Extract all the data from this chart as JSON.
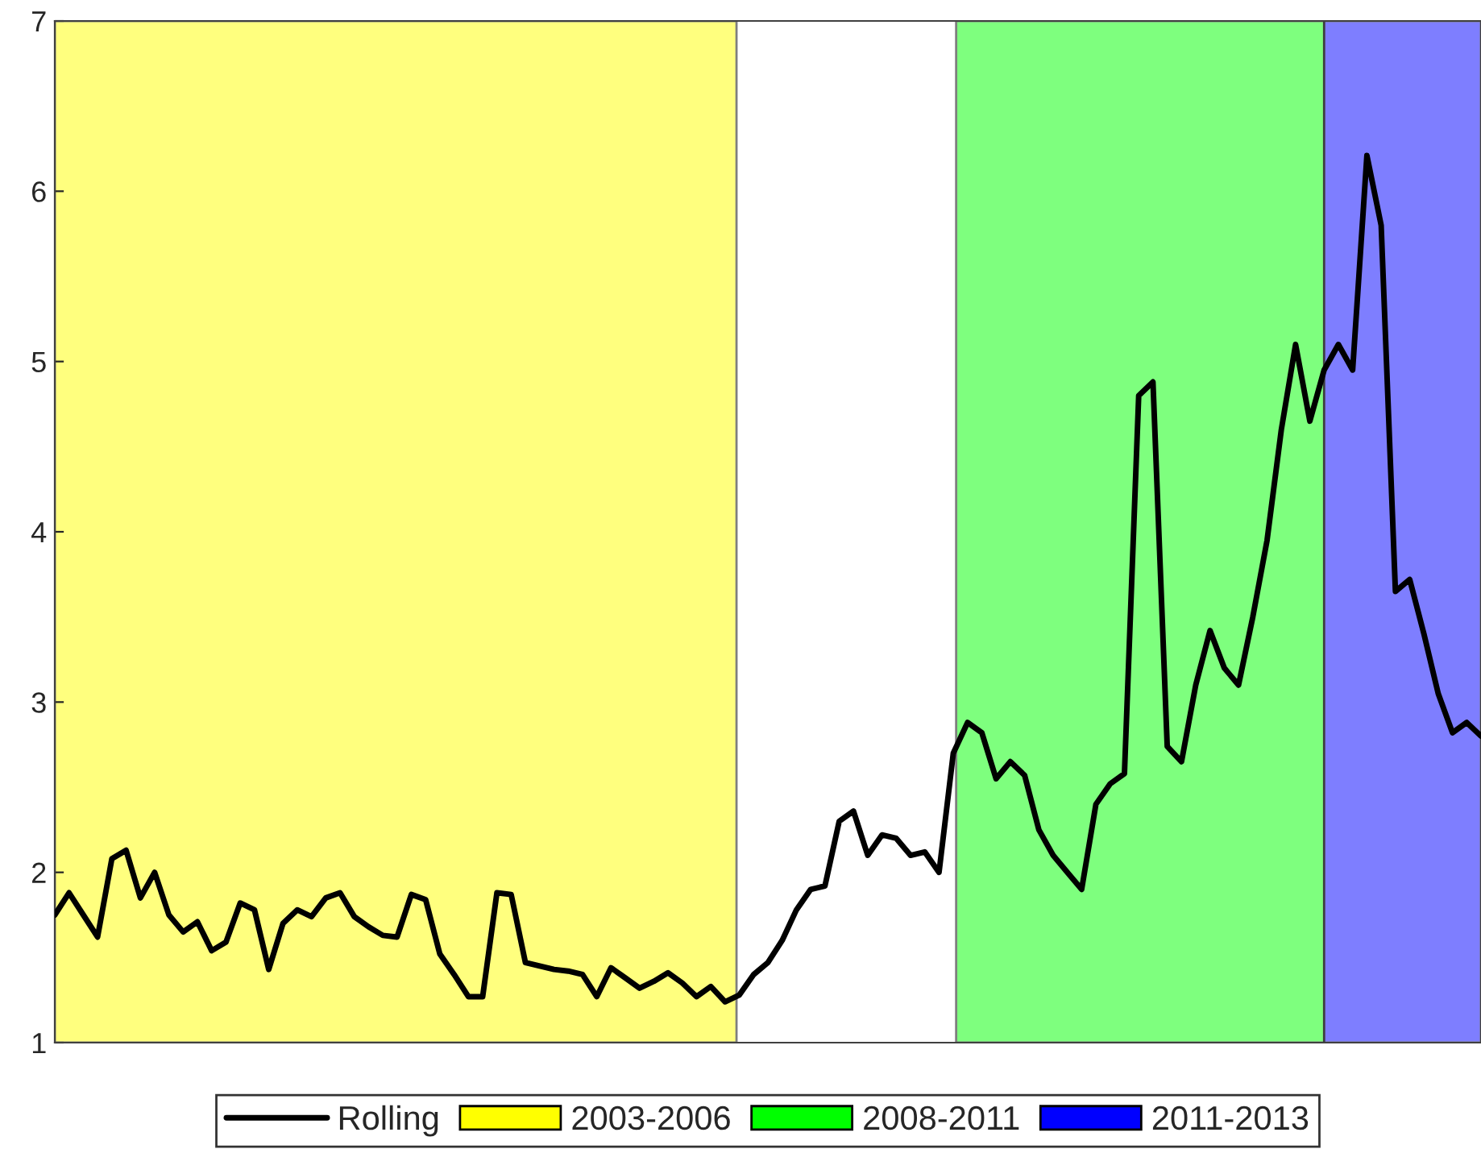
{
  "chart_data": {
    "type": "line",
    "categories": [
      null,
      null,
      null,
      null,
      null,
      null,
      null,
      null,
      null,
      null,
      null,
      null,
      null,
      null,
      null,
      null,
      null,
      null,
      null,
      null,
      null,
      null,
      null,
      null,
      null,
      null,
      null,
      null,
      null,
      null,
      null,
      null,
      null,
      null,
      null,
      null,
      null,
      null,
      null,
      null,
      null,
      null,
      null,
      null,
      null,
      null,
      null,
      null,
      null,
      null,
      null,
      null,
      null,
      null,
      null,
      null,
      null,
      null,
      null,
      null,
      null,
      null,
      null,
      null,
      null,
      null,
      null,
      null,
      null,
      null,
      null,
      null,
      null,
      null,
      null,
      null,
      null,
      null,
      null,
      null,
      null,
      null,
      null,
      null,
      null,
      null,
      null,
      null,
      null,
      null,
      null,
      null,
      null,
      null,
      null,
      null,
      null,
      null,
      null,
      null,
      null
    ],
    "series": [
      {
        "name": "Rolling",
        "color": "#000000",
        "values": [
          1.75,
          1.88,
          1.75,
          1.62,
          2.08,
          2.13,
          1.85,
          2.0,
          1.75,
          1.65,
          1.71,
          1.54,
          1.59,
          1.82,
          1.78,
          1.43,
          1.7,
          1.78,
          1.74,
          1.85,
          1.88,
          1.74,
          1.68,
          1.63,
          1.62,
          1.87,
          1.84,
          1.52,
          1.4,
          1.27,
          1.27,
          1.88,
          1.87,
          1.47,
          1.45,
          1.43,
          1.42,
          1.4,
          1.27,
          1.44,
          1.38,
          1.32,
          1.36,
          1.41,
          1.35,
          1.27,
          1.33,
          1.24,
          1.28,
          1.4,
          1.47,
          1.6,
          1.78,
          1.9,
          1.92,
          2.3,
          2.36,
          2.1,
          2.22,
          2.2,
          2.1,
          2.12,
          2.0,
          2.7,
          2.88,
          2.82,
          2.55,
          2.65,
          2.57,
          2.25,
          2.1,
          2.0,
          1.9,
          2.4,
          2.52,
          2.58,
          4.8,
          4.88,
          2.74,
          2.65,
          3.1,
          3.42,
          3.2,
          3.1,
          3.5,
          3.95,
          4.6,
          5.1,
          4.65,
          4.95,
          5.1,
          4.95,
          6.21,
          5.8,
          3.65,
          3.72,
          3.4,
          3.05,
          2.82,
          2.88,
          2.8
        ]
      }
    ],
    "ylim": [
      1,
      7
    ],
    "yticks": [
      1,
      2,
      3,
      4,
      5,
      6,
      7
    ],
    "tick_labels": "y",
    "grid": false,
    "legend": "bottom",
    "line_style": "solid",
    "annotations": [
      "2003-2006",
      "2008-2011",
      "2011-2013"
    ]
  }
}
